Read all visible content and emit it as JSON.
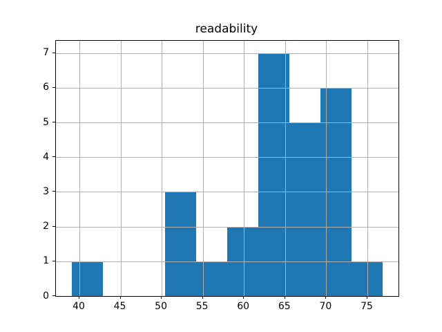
{
  "figure": {
    "background": "#ffffff"
  },
  "chart_data": {
    "type": "bar",
    "subtype": "histogram",
    "title": "readability",
    "xlabel": "",
    "ylabel": "",
    "bin_edges": [
      39.04,
      42.83,
      46.61,
      50.4,
      54.18,
      57.97,
      61.75,
      65.54,
      69.32,
      73.11,
      76.89
    ],
    "counts": [
      1,
      0,
      0,
      3,
      1,
      2,
      7,
      5,
      6,
      1
    ],
    "xticks": [
      40,
      45,
      50,
      55,
      60,
      65,
      70,
      75
    ],
    "yticks": [
      0,
      1,
      2,
      3,
      4,
      5,
      6,
      7
    ],
    "xlim": [
      37.15,
      78.78
    ],
    "ylim": [
      0,
      7.35
    ],
    "grid": true,
    "grid_over_bars": true,
    "legend": "none",
    "bar_color": "#1f77b4",
    "grid_color": "#b0b0b0",
    "axis_color": "#000000",
    "text_color": "#000000"
  }
}
